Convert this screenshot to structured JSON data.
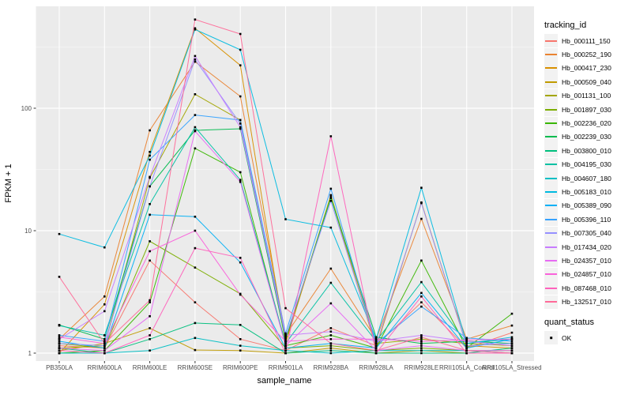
{
  "chart_data": {
    "type": "line",
    "title": "",
    "xlabel": "sample_name",
    "ylabel": "FPKM + 1",
    "y_scale": "log10",
    "ylim": [
      1,
      660
    ],
    "grid": true,
    "y_tick_labels": [
      "1",
      "10",
      "100"
    ],
    "y_tick_values": [
      1,
      10,
      100
    ],
    "y_minor_values": [
      3.162,
      31.62,
      316.2
    ],
    "categories": [
      "PB350LA",
      "RRIM600LA",
      "RRIM600LE",
      "RRIM600SE",
      "RRIM600PE",
      "RRIM901LA",
      "RRIM928BA",
      "RRIM928LA",
      "RRIM928LE",
      "RRII105LA_Control",
      "RRII105LA_Stressed"
    ],
    "legend": {
      "color_title": "tracking_id",
      "shape_title": "quant_status",
      "shape_entries": [
        {
          "label": "OK",
          "shape": "filled-square",
          "color": "#000000"
        }
      ],
      "position": "right"
    },
    "point_shape": "filled-square",
    "point_color": "#000000",
    "series": [
      {
        "name": "Hb_000111_150",
        "color": "#F8766D",
        "values": [
          1.15,
          1.1,
          5.7,
          2.6,
          1.3,
          1.05,
          1.6,
          1.15,
          2.6,
          1.1,
          1.47
        ]
      },
      {
        "name": "Hb_000252_190",
        "color": "#EA8331",
        "values": [
          1.3,
          2.9,
          66,
          240,
          125,
          1.4,
          4.9,
          1.3,
          12.5,
          1.3,
          1.68
        ]
      },
      {
        "name": "Hb_000417_230",
        "color": "#D89000",
        "values": [
          1.0,
          2.5,
          44,
          450,
          224,
          1.2,
          19,
          1.1,
          17,
          1.15,
          1.1
        ]
      },
      {
        "name": "Hb_000509_040",
        "color": "#C09B00",
        "values": [
          1.05,
          1.2,
          1.6,
          1.06,
          1.05,
          1.0,
          1.1,
          1.0,
          1.05,
          1.0,
          1.0
        ]
      },
      {
        "name": "Hb_001131_100",
        "color": "#A3A500",
        "values": [
          1.1,
          1.15,
          27,
          130,
          80,
          1.25,
          19.5,
          1.2,
          1.3,
          1.2,
          1.15
        ]
      },
      {
        "name": "Hb_001897_030",
        "color": "#7CAE00",
        "values": [
          1.2,
          1.1,
          8.2,
          5.0,
          3.05,
          1.1,
          1.15,
          1.05,
          1.1,
          1.05,
          1.05
        ]
      },
      {
        "name": "Hb_002236_020",
        "color": "#39B600",
        "values": [
          1.0,
          1.05,
          2.6,
          47,
          30,
          1.15,
          1.4,
          1.1,
          5.7,
          1.1,
          2.1
        ]
      },
      {
        "name": "Hb_002239_030",
        "color": "#00BB4E",
        "values": [
          1.7,
          1.3,
          23,
          66,
          68,
          1.3,
          18.5,
          1.35,
          1.2,
          1.25,
          1.2
        ]
      },
      {
        "name": "Hb_003800_010",
        "color": "#00BF7D",
        "values": [
          1.1,
          1.0,
          1.3,
          1.76,
          1.7,
          1.0,
          1.05,
          1.0,
          1.0,
          1.0,
          1.1
        ]
      },
      {
        "name": "Hb_004195_030",
        "color": "#00C1A3",
        "values": [
          1.68,
          1.4,
          16.5,
          70,
          26,
          1.2,
          3.75,
          1.25,
          3.8,
          1.2,
          1.3
        ]
      },
      {
        "name": "Hb_004607_180",
        "color": "#00BFC4",
        "values": [
          1.0,
          1.0,
          1.05,
          1.33,
          1.15,
          1.05,
          1.0,
          1.05,
          1.05,
          1.05,
          1.0
        ]
      },
      {
        "name": "Hb_005183_010",
        "color": "#00BAE0",
        "values": [
          9.4,
          7.3,
          41,
          440,
          300,
          12.4,
          10.6,
          1.3,
          22.4,
          1.2,
          1.35
        ]
      },
      {
        "name": "Hb_005389_090",
        "color": "#00B0F6",
        "values": [
          1.25,
          1.1,
          13.5,
          13,
          5.5,
          1.1,
          1.2,
          1.1,
          3.1,
          1.1,
          1.3
        ]
      },
      {
        "name": "Hb_005396_110",
        "color": "#35A2FF",
        "values": [
          1.4,
          1.25,
          38,
          88,
          80,
          1.45,
          22,
          1.2,
          2.4,
          1.33,
          1.25
        ]
      },
      {
        "name": "Hb_007305_040",
        "color": "#9590FF",
        "values": [
          1.2,
          1.15,
          23,
          250,
          75,
          1.35,
          17.5,
          1.15,
          16.8,
          1.15,
          1.2
        ]
      },
      {
        "name": "Hb_017434_020",
        "color": "#C77CFF",
        "values": [
          1.3,
          2.2,
          27.5,
          267,
          70,
          1.4,
          1.5,
          1.25,
          1.4,
          1.25,
          1.15
        ]
      },
      {
        "name": "Hb_024357_010",
        "color": "#E76BF3",
        "values": [
          1.1,
          1.05,
          2.0,
          65,
          25,
          1.15,
          2.55,
          1.05,
          1.15,
          1.05,
          1.05
        ]
      },
      {
        "name": "Hb_024857_010",
        "color": "#FA62DB",
        "values": [
          1.35,
          1.2,
          6.8,
          10,
          3.0,
          1.25,
          1.3,
          1.3,
          1.25,
          1.28,
          1.3
        ]
      },
      {
        "name": "Hb_087468_010",
        "color": "#FF62BC",
        "values": [
          1.05,
          1.0,
          1.4,
          7.2,
          6.0,
          1.0,
          59,
          1.0,
          2.9,
          1.0,
          1.0
        ]
      },
      {
        "name": "Hb_132517_010",
        "color": "#FF6A98",
        "values": [
          4.2,
          1.2,
          2.7,
          530,
          404,
          2.33,
          1.2,
          1.05,
          1.35,
          1.05,
          1.0
        ]
      }
    ]
  },
  "theme": {
    "panel_bg": "#EBEBEB",
    "grid_major": "#FFFFFF",
    "grid_minor": "rgba(255,255,255,0.55)",
    "tick_mark": "#333333",
    "tick_text": "#4D4D4D",
    "key_bg": "#F2F2F2"
  }
}
